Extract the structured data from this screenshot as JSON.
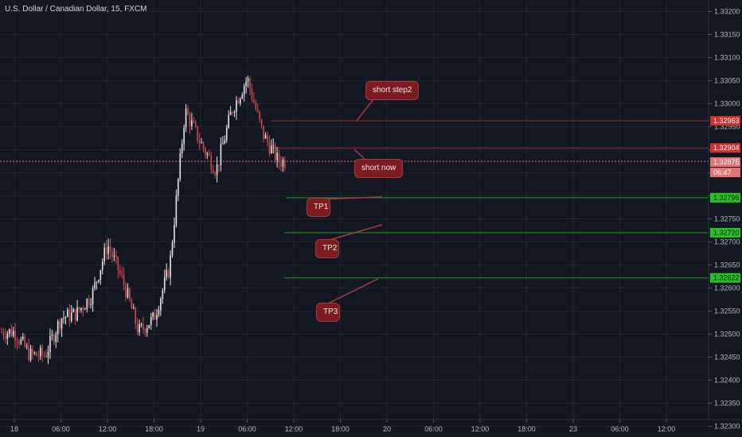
{
  "header": {
    "title": "U.S. Dollar / Canadian Dollar, 15, FXCM"
  },
  "colors": {
    "background": "#131722",
    "up": "#e6e6e6",
    "down": "#c94d4d",
    "resistance": "#d32f2f",
    "target": "#22c322",
    "callout": "#7a1c20"
  },
  "chart_data": {
    "type": "candlestick",
    "symbol": "USD/CAD",
    "timeframe": "15",
    "y_range": [
      1.32295,
      1.33215
    ],
    "y_ticks": [
      "1.33200",
      "1.33150",
      "1.33100",
      "1.33050",
      "1.33000",
      "1.32950",
      "1.32900",
      "1.32850",
      "1.32800",
      "1.32750",
      "1.32700",
      "1.32650",
      "1.32600",
      "1.32550",
      "1.32500",
      "1.32450",
      "1.32400",
      "1.32350",
      "1.32300"
    ],
    "x_ticks": [
      "18",
      "06:00",
      "12:00",
      "18:00",
      "19",
      "06:00",
      "12:00",
      "18:00",
      "20",
      "06:00",
      "12:00",
      "18:00",
      "23",
      "06:00",
      "12:00"
    ],
    "price_tags": [
      {
        "value": "1.32963",
        "color": "#d32f2f",
        "kind": "resistance"
      },
      {
        "value": "1.32904",
        "color": "#d32f2f",
        "kind": "resistance"
      },
      {
        "value": "1.32875",
        "color": "#e57373",
        "kind": "last-price"
      },
      {
        "value": "06:47",
        "color": "#e57373",
        "kind": "countdown"
      },
      {
        "value": "1.32796",
        "color": "#22c322",
        "kind": "target"
      },
      {
        "value": "1.32720",
        "color": "#22c322",
        "kind": "target"
      },
      {
        "value": "1.32622",
        "color": "#22c322",
        "kind": "target"
      }
    ],
    "horizontal_lines": [
      {
        "price": 1.32963,
        "color": "#d32f2f",
        "start_time": "07/19 09:00"
      },
      {
        "price": 1.32904,
        "color": "#d32f2f",
        "start_time": "07/19 09:00"
      },
      {
        "price": 1.32875,
        "color": "#e57373",
        "start_time": "07/18 00:00",
        "style": "dotted"
      },
      {
        "price": 1.32796,
        "color": "#22c322",
        "start_time": "07/19 11:00"
      },
      {
        "price": 1.3272,
        "color": "#22c322",
        "start_time": "07/19 10:45"
      },
      {
        "price": 1.32622,
        "color": "#22c322",
        "start_time": "07/19 10:45"
      }
    ],
    "annotations": [
      {
        "text": "short step2",
        "level": 1.32963
      },
      {
        "text": "short now",
        "level": 1.32904
      },
      {
        "text": "TP1",
        "level": 1.32796
      },
      {
        "text": "TP2",
        "level": 1.3272
      },
      {
        "text": "TP3",
        "level": 1.32622
      }
    ],
    "close_series": [
      {
        "t": "07/18 00:00",
        "c": 1.32505
      },
      {
        "t": "07/18 02:00",
        "c": 1.32455
      },
      {
        "t": "07/18 04:00",
        "c": 1.32455
      },
      {
        "t": "07/18 06:00",
        "c": 1.32535
      },
      {
        "t": "07/18 08:00",
        "c": 1.32545
      },
      {
        "t": "07/18 10:00",
        "c": 1.32585
      },
      {
        "t": "07/18 12:00",
        "c": 1.32695
      },
      {
        "t": "07/18 14:00",
        "c": 1.32615
      },
      {
        "t": "07/18 16:00",
        "c": 1.32505
      },
      {
        "t": "07/18 18:00",
        "c": 1.32535
      },
      {
        "t": "07/18 20:00",
        "c": 1.32645
      },
      {
        "t": "07/18 22:00",
        "c": 1.32985
      },
      {
        "t": "07/19 00:00",
        "c": 1.32915
      },
      {
        "t": "07/19 02:00",
        "c": 1.32855
      },
      {
        "t": "07/19 04:00",
        "c": 1.32985
      },
      {
        "t": "07/19 06:00",
        "c": 1.33055
      },
      {
        "t": "07/19 08:00",
        "c": 1.32935
      },
      {
        "t": "07/19 10:00",
        "c": 1.32875
      },
      {
        "t": "07/19 11:00",
        "c": 1.32875
      }
    ]
  }
}
